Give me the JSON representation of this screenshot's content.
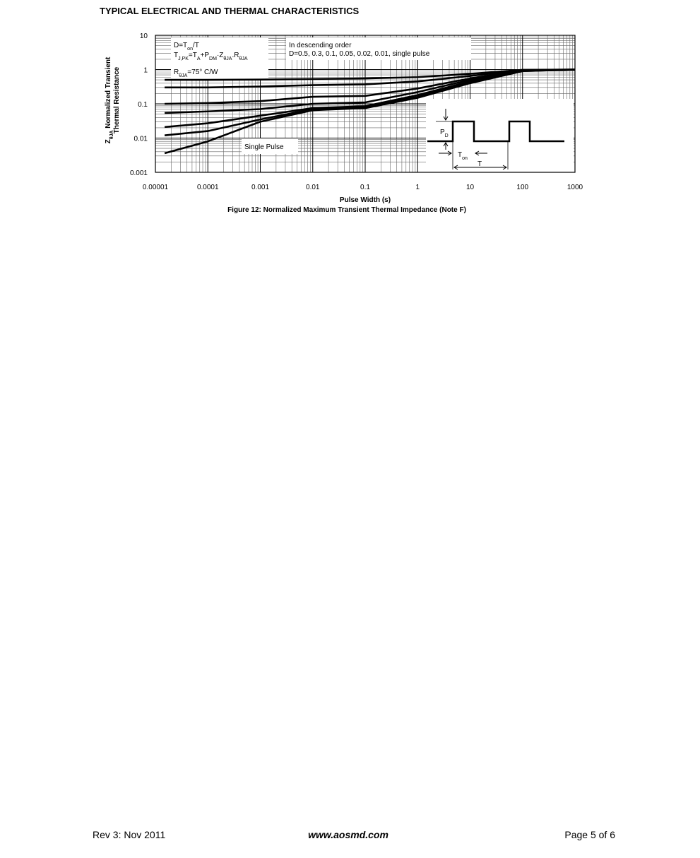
{
  "header": {
    "title": "TYPICAL ELECTRICAL AND THERMAL CHARACTERISTICS"
  },
  "chart_data": {
    "type": "line",
    "x": [
      1.5e-05,
      0.0001,
      0.001,
      0.01,
      0.1,
      1,
      10,
      100,
      1000
    ],
    "series": [
      {
        "color": "#000000",
        "values": [
          0.5,
          0.5,
          0.51,
          0.53,
          0.55,
          0.6,
          0.75,
          0.98,
          1
        ]
      },
      {
        "color": "#000000",
        "values": [
          0.3,
          0.3,
          0.32,
          0.35,
          0.37,
          0.45,
          0.65,
          0.97,
          1
        ]
      },
      {
        "color": "#000000",
        "values": [
          0.1,
          0.105,
          0.12,
          0.16,
          0.17,
          0.28,
          0.55,
          0.95,
          1
        ]
      },
      {
        "color": "#000000",
        "values": [
          0.054,
          0.06,
          0.07,
          0.1,
          0.11,
          0.22,
          0.5,
          0.93,
          1
        ]
      },
      {
        "color": "#000000",
        "values": [
          0.021,
          0.027,
          0.045,
          0.075,
          0.085,
          0.18,
          0.45,
          0.92,
          1
        ]
      },
      {
        "color": "#000000",
        "values": [
          0.012,
          0.016,
          0.035,
          0.07,
          0.08,
          0.16,
          0.42,
          0.9,
          1
        ]
      },
      {
        "color": "#000000",
        "values": [
          0.0036,
          0.008,
          0.03,
          0.065,
          0.075,
          0.15,
          0.4,
          0.9,
          1
        ]
      }
    ],
    "xlim": [
      1e-05,
      1000
    ],
    "ylim": [
      0.001,
      10
    ],
    "xticks": [
      1e-05,
      0.0001,
      0.001,
      0.01,
      0.1,
      1,
      10,
      100,
      1000
    ],
    "yticks": [
      0.001,
      0.01,
      0.1,
      1,
      10
    ],
    "log_x": true,
    "log_y": true,
    "grid": true,
    "x_label": "Pulse Width (s)",
    "y_label": [
      [
        "Z",
        "θJA",
        " Normalized Transient"
      ],
      [
        "Thermal Resistance"
      ]
    ],
    "formula_box": [
      [
        "D=T",
        "on",
        "/T"
      ],
      [
        "T",
        "J,PK",
        "=T",
        "A",
        "+P",
        "DM",
        "·Z",
        "θJA",
        ".R",
        "θJA"
      ],
      [
        "R",
        "θJA",
        "=75° C/W"
      ]
    ],
    "order_note": [
      "In descending order",
      "D=0.5, 0.3, 0.1, 0.05, 0.02, 0.01, single pulse"
    ],
    "single_pulse_label": "Single Pulse",
    "inset": {
      "pd": [
        "P",
        "D"
      ],
      "ton": [
        "T",
        "on"
      ],
      "period": "T"
    },
    "caption": "Figure 12: Normalized Maximum Transient Thermal Impedance (Note F)"
  },
  "footer": {
    "left": "Rev 3: Nov 2011",
    "center": "www.aosmd.com",
    "right": "Page 5 of 6"
  }
}
